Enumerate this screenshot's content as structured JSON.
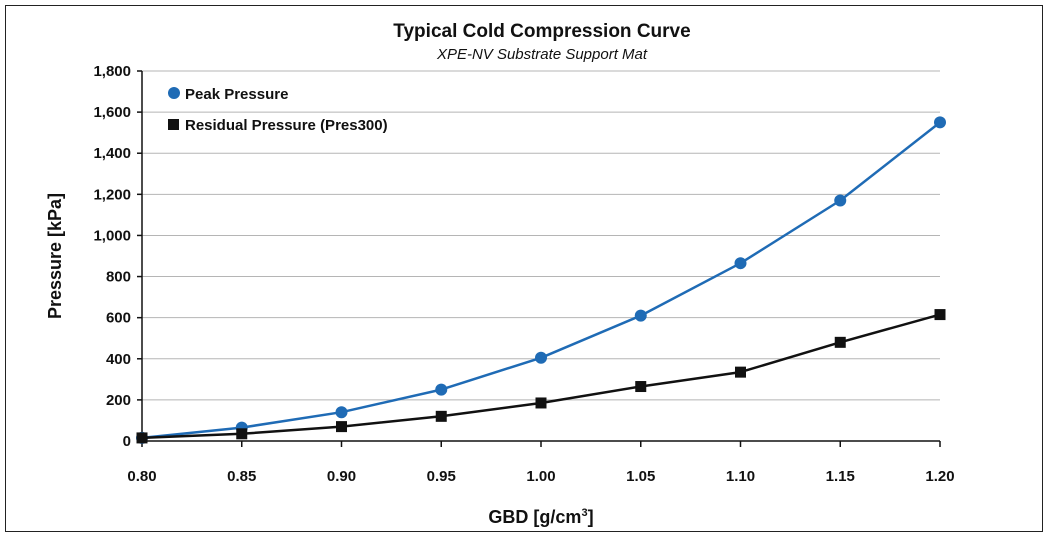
{
  "chart_data": {
    "type": "line",
    "title": "Typical Cold Compression Curve",
    "subtitle": "XPE-NV Substrate Support Mat",
    "xlabel": "GBD [g/cm",
    "xlabel_sup": "3",
    "xlabel_end": "]",
    "ylabel": "Pressure [kPa]",
    "x": [
      0.8,
      0.85,
      0.9,
      0.95,
      1.0,
      1.05,
      1.1,
      1.15,
      1.2
    ],
    "x_tick_labels": [
      "0.80",
      "0.85",
      "0.90",
      "0.95",
      "1.00",
      "1.05",
      "1.10",
      "1.15",
      "1.20"
    ],
    "xlim": [
      0.8,
      1.2
    ],
    "ylim": [
      0,
      1800
    ],
    "y_ticks": [
      0,
      200,
      400,
      600,
      800,
      1000,
      1200,
      1400,
      1600,
      1800
    ],
    "y_tick_labels": [
      "0",
      "200",
      "400",
      "600",
      "800",
      "1,000",
      "1,200",
      "1,400",
      "1,600",
      "1,800"
    ],
    "grid": "horizontal",
    "legend_position": "top-left",
    "series": [
      {
        "name": "Peak Pressure",
        "color": "#1f6bb5",
        "marker": "circle",
        "values": [
          15,
          65,
          140,
          250,
          405,
          610,
          865,
          1170,
          1550
        ]
      },
      {
        "name": "Residual Pressure (Pres300)",
        "color": "#111111",
        "marker": "square",
        "values": [
          15,
          35,
          70,
          120,
          185,
          265,
          335,
          480,
          615
        ]
      }
    ]
  }
}
